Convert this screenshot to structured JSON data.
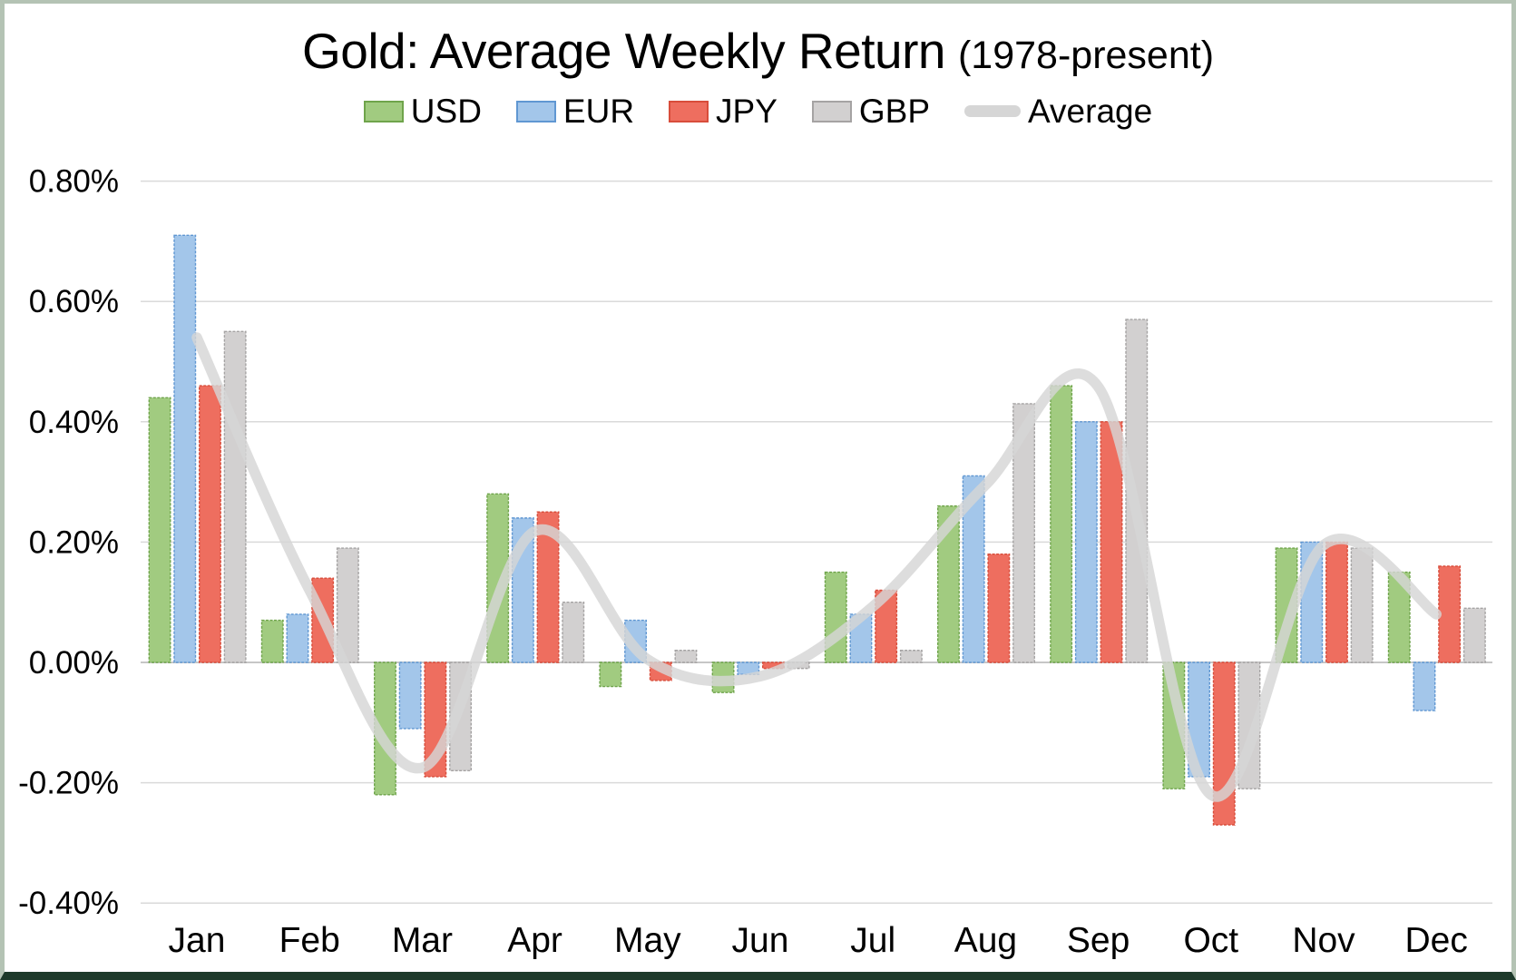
{
  "title": {
    "main": "Gold: Average Weekly Return",
    "suffix": "(1978-present)"
  },
  "legend": {
    "items": [
      {
        "label": "USD"
      },
      {
        "label": "EUR"
      },
      {
        "label": "JPY"
      },
      {
        "label": "GBP"
      },
      {
        "label": "Average"
      }
    ]
  },
  "chart_data": {
    "type": "bar",
    "title": "Gold: Average Weekly Return (1978-present)",
    "subtitle": "",
    "xlabel": "",
    "ylabel": "",
    "unit": "percent average weekly return",
    "categories": [
      "Jan",
      "Feb",
      "Mar",
      "Apr",
      "May",
      "Jun",
      "Jul",
      "Aug",
      "Sep",
      "Oct",
      "Nov",
      "Dec"
    ],
    "ylim": [
      -0.4,
      0.8
    ],
    "y_ticks": [
      "0.80%",
      "0.60%",
      "0.40%",
      "0.20%",
      "0.00%",
      "-0.20%",
      "-0.40%"
    ],
    "y_tick_values": [
      0.8,
      0.6,
      0.4,
      0.2,
      0.0,
      -0.2,
      -0.4
    ],
    "grid": true,
    "legend_position": "top",
    "series": [
      {
        "name": "USD",
        "type": "bar",
        "color": "#a1cb80",
        "border_color": "#6fa44b",
        "values": [
          0.44,
          0.07,
          -0.22,
          0.28,
          -0.04,
          -0.05,
          0.15,
          0.26,
          0.46,
          -0.21,
          0.19,
          0.15
        ]
      },
      {
        "name": "EUR",
        "type": "bar",
        "color": "#a3c6ea",
        "border_color": "#6097d2",
        "values": [
          0.71,
          0.08,
          -0.11,
          0.24,
          0.07,
          -0.02,
          0.08,
          0.31,
          0.4,
          -0.19,
          0.2,
          -0.08
        ]
      },
      {
        "name": "JPY",
        "type": "bar",
        "color": "#ee6e5f",
        "border_color": "#d84d3b",
        "values": [
          0.46,
          0.14,
          -0.19,
          0.25,
          -0.03,
          -0.01,
          0.12,
          0.18,
          0.4,
          -0.27,
          0.2,
          0.16
        ]
      },
      {
        "name": "GBP",
        "type": "bar",
        "color": "#d2d0d0",
        "border_color": "#a5a3a3",
        "values": [
          0.55,
          0.19,
          -0.18,
          0.1,
          0.02,
          -0.01,
          0.02,
          0.43,
          0.57,
          -0.21,
          0.19,
          0.09
        ]
      },
      {
        "name": "Average",
        "type": "line",
        "color": "#d6d6d6",
        "values": [
          0.54,
          0.12,
          -0.175,
          0.218,
          0.005,
          -0.023,
          0.093,
          0.295,
          0.458,
          -0.22,
          0.195,
          0.08
        ]
      }
    ]
  },
  "colors": {
    "background": "#ffffff",
    "gridline": "#dadada",
    "zero_line": "#c6c6c6",
    "text": "#000000",
    "frame_border": "#b4c3b4",
    "frame_border_bottom": "#1e3a2b",
    "average_line": "#d6d6d6"
  }
}
